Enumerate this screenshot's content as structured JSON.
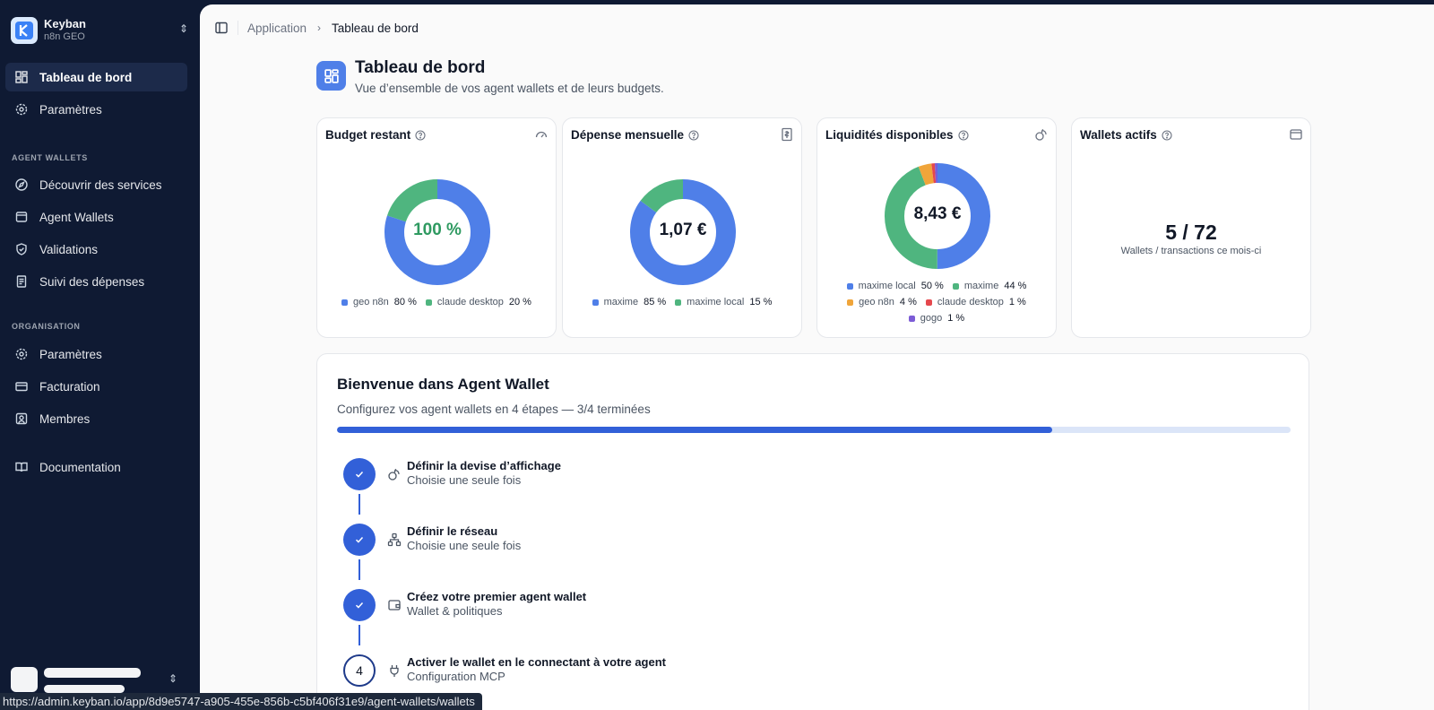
{
  "org": {
    "name": "Keyban",
    "subtitle": "n8n GEO"
  },
  "sidebar": {
    "top_items": [
      {
        "label": "Tableau de bord",
        "icon": "dashboard-icon",
        "active": true
      },
      {
        "label": "Paramètres",
        "icon": "gear-icon",
        "active": false
      }
    ],
    "section_agent": "AGENT WALLETS",
    "agent_items": [
      {
        "label": "Découvrir des services",
        "icon": "compass-icon"
      },
      {
        "label": "Agent Wallets",
        "icon": "wallet-icon"
      },
      {
        "label": "Validations",
        "icon": "shield-check-icon"
      },
      {
        "label": "Suivi des dépenses",
        "icon": "receipt-icon"
      }
    ],
    "section_org": "ORGANISATION",
    "org_items": [
      {
        "label": "Paramètres",
        "icon": "gear-icon"
      },
      {
        "label": "Facturation",
        "icon": "credit-card-icon"
      },
      {
        "label": "Membres",
        "icon": "user-square-icon"
      }
    ],
    "doc_item": {
      "label": "Documentation",
      "icon": "book-icon"
    }
  },
  "breadcrumb": {
    "parent": "Application",
    "current": "Tableau de bord"
  },
  "page": {
    "title": "Tableau de bord",
    "subtitle": "Vue d’ensemble de vos agent wallets et de leurs budgets."
  },
  "cards": {
    "budget": {
      "title": "Budget restant",
      "center": "100 %",
      "legend": [
        {
          "name": "geo n8n",
          "value": "80 %",
          "color": "#4f7fe8"
        },
        {
          "name": "claude desktop",
          "value": "20 %",
          "color": "#4fb57f"
        }
      ]
    },
    "depense": {
      "title": "Dépense mensuelle",
      "center": "1,07 €",
      "legend": [
        {
          "name": "maxime",
          "value": "85 %",
          "color": "#4f7fe8"
        },
        {
          "name": "maxime local",
          "value": "15 %",
          "color": "#4fb57f"
        }
      ]
    },
    "liquidites": {
      "title": "Liquidités disponibles",
      "center": "8,43 €",
      "legend": [
        {
          "name": "maxime local",
          "value": "50 %",
          "color": "#4f7fe8"
        },
        {
          "name": "maxime",
          "value": "44 %",
          "color": "#4fb57f"
        },
        {
          "name": "geo n8n",
          "value": "4 %",
          "color": "#f0a53a"
        },
        {
          "name": "claude desktop",
          "value": "1 %",
          "color": "#e5484d"
        },
        {
          "name": "gogo",
          "value": "1 %",
          "color": "#7c5cd6"
        }
      ]
    },
    "wallets": {
      "title": "Wallets actifs",
      "value": "5 / 72",
      "caption": "Wallets / transactions ce mois-ci"
    }
  },
  "welcome": {
    "title": "Bienvenue dans Agent Wallet",
    "subtitle": "Configurez vos agent wallets en 4 étapes — 3/4 terminées",
    "progress": 0.75,
    "steps": [
      {
        "title": "Définir la devise d’affichage",
        "desc": "Choisie une seule fois",
        "done": true,
        "icon": "coins-icon"
      },
      {
        "title": "Définir le réseau",
        "desc": "Choisie une seule fois",
        "done": true,
        "icon": "network-icon"
      },
      {
        "title": "Créez votre premier agent wallet",
        "desc": "Wallet & politiques",
        "done": true,
        "icon": "wallet-icon"
      },
      {
        "title": "Activer le wallet en le connectant à votre agent",
        "desc": "Configuration MCP",
        "done": false,
        "number": "4",
        "icon": "plug-icon"
      }
    ]
  },
  "status_bar": {
    "url": "https://admin.keyban.io/app/8d9e5747-a905-455e-856b-c5bf406f31e9/agent-wallets/wallets"
  }
}
